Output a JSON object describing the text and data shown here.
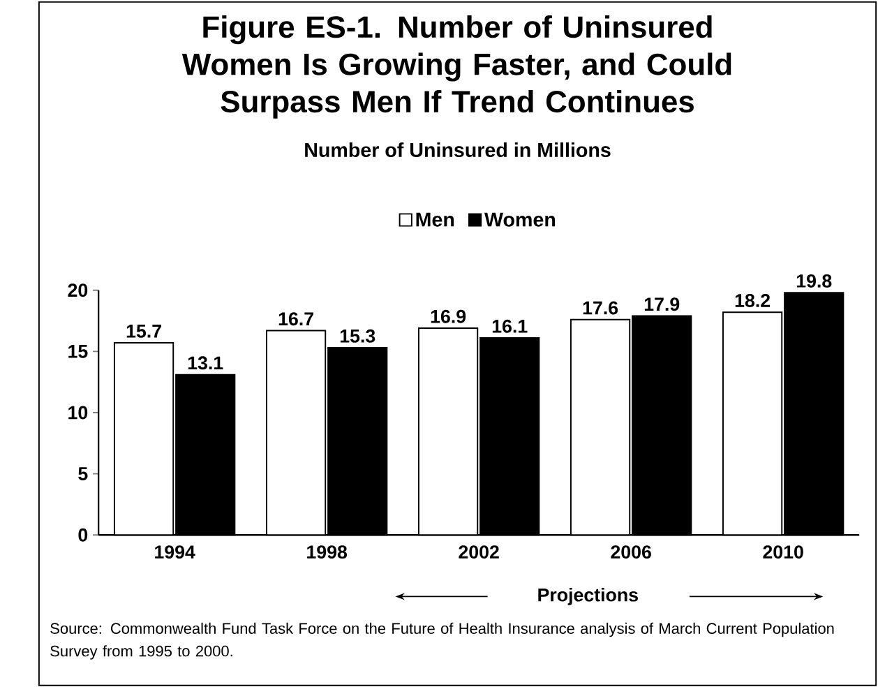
{
  "chart_data": {
    "type": "bar",
    "title": "Figure ES-1. Number of Uninsured Women Is Growing Faster, and Could Surpass Men If Trend Continues",
    "subtitle": "Number of Uninsured in Millions",
    "categories": [
      "1994",
      "1998",
      "2002",
      "2006",
      "2010"
    ],
    "series": [
      {
        "name": "Men",
        "color": "#ffffff",
        "values": [
          15.7,
          16.7,
          16.9,
          17.6,
          18.2
        ]
      },
      {
        "name": "Women",
        "color": "#000000",
        "values": [
          13.1,
          15.3,
          16.1,
          17.9,
          19.8
        ]
      }
    ],
    "ylim": [
      0,
      20
    ],
    "yticks": [
      0,
      5,
      10,
      15,
      20
    ],
    "grid": false,
    "legend": "top",
    "data_labels": true,
    "annotations": [
      "Projections",
      "Source: Commonwealth Fund Task Force on the Future of Health Insurance analysis of March Current Population Survey from 1995 to 2000."
    ]
  }
}
